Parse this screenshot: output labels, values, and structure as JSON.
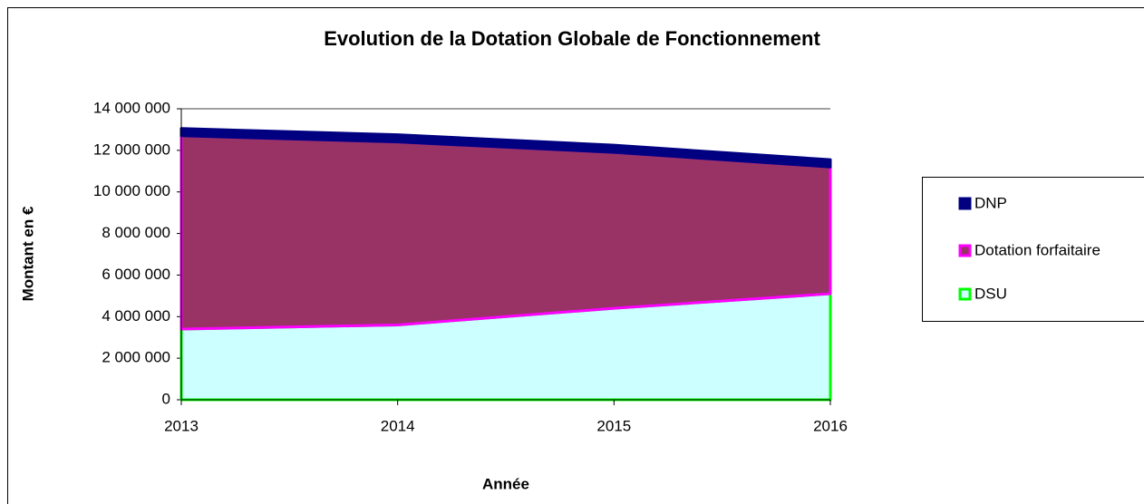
{
  "chart_data": {
    "type": "stacked_area",
    "title": "Evolution de la Dotation Globale de Fonctionnement",
    "xlabel": "Année",
    "ylabel": "Montant en €",
    "categories": [
      "2013",
      "2014",
      "2015",
      "2016"
    ],
    "series": [
      {
        "name": "DSU",
        "color": "#00ff00",
        "fill": "#ccffff",
        "values": [
          3400000,
          3600000,
          4400000,
          5100000
        ]
      },
      {
        "name": "Dotation forfaitaire",
        "color": "#ff00ff",
        "fill": "#993366",
        "values": [
          9300000,
          8800000,
          7500000,
          6100000
        ]
      },
      {
        "name": "DNP",
        "color": "#000080",
        "fill": "#000080",
        "values": [
          350000,
          350000,
          350000,
          350000
        ]
      }
    ],
    "ylim": [
      0,
      14000000
    ],
    "yticks": [
      {
        "value": 0,
        "label": "0"
      },
      {
        "value": 2000000,
        "label": "2 000 000"
      },
      {
        "value": 4000000,
        "label": "4 000 000"
      },
      {
        "value": 6000000,
        "label": "6 000 000"
      },
      {
        "value": 8000000,
        "label": "8 000 000"
      },
      {
        "value": 10000000,
        "label": "10 000 000"
      },
      {
        "value": 12000000,
        "label": "12 000 000"
      },
      {
        "value": 14000000,
        "label": "14 000 000"
      }
    ],
    "legend": "right"
  }
}
